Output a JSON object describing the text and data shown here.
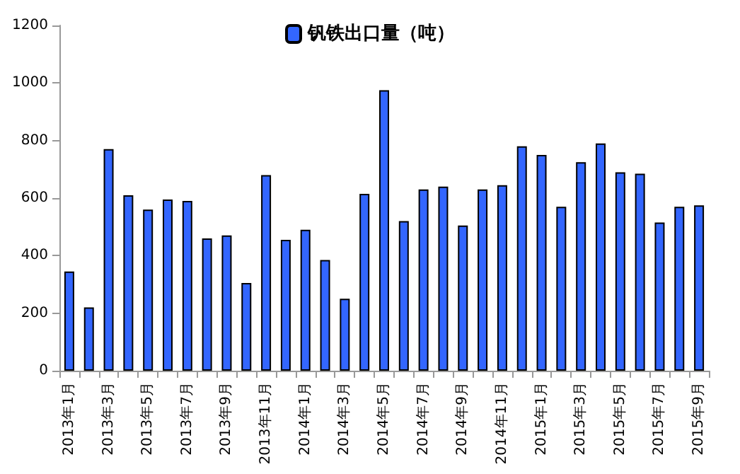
{
  "chart_data": {
    "type": "bar",
    "categories": [
      "2013年1月",
      null,
      "2013年3月",
      null,
      "2013年5月",
      null,
      "2013年7月",
      null,
      "2013年9月",
      null,
      "2013年11月",
      null,
      "2014年1月",
      null,
      "2014年3月",
      null,
      "2014年5月",
      null,
      "2014年7月",
      null,
      "2014年9月",
      null,
      "2014年11月",
      null,
      "2015年1月",
      null,
      "2015年3月",
      null,
      "2015年5月",
      null,
      "2015年7月",
      null,
      "2015年9月"
    ],
    "series": [
      {
        "name": "钒铁出口量（吨）",
        "color": "#3366ff",
        "values": [
          345,
          220,
          770,
          610,
          560,
          595,
          590,
          460,
          470,
          305,
          680,
          455,
          490,
          385,
          250,
          615,
          975,
          520,
          630,
          640,
          505,
          630,
          645,
          780,
          750,
          570,
          725,
          790,
          690,
          685,
          515,
          570,
          575
        ]
      }
    ],
    "ylim": [
      0,
      1200
    ],
    "yticks": [
      0,
      200,
      400,
      600,
      800,
      1000,
      1200
    ],
    "grid": false,
    "legend": "top"
  }
}
